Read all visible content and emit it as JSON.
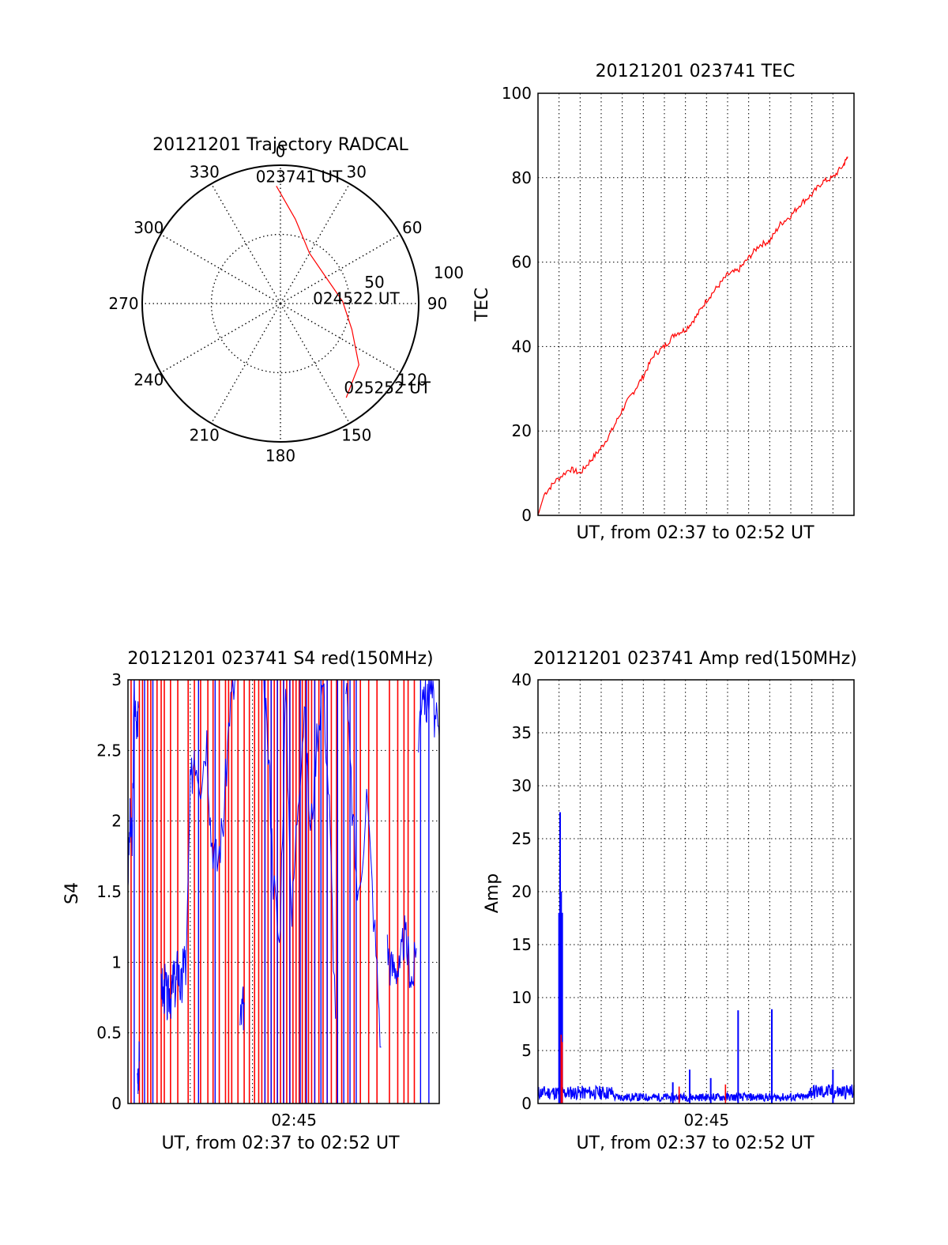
{
  "colors": {
    "red": "#ff0000",
    "blue": "#0000ff",
    "grid": "#000000"
  },
  "chart_data": [
    {
      "id": "trajectory",
      "type": "polar",
      "title": "20121201 Trajectory RADCAL",
      "angle_labels": [
        "0",
        "30",
        "60",
        "90",
        "120",
        "150",
        "180",
        "210",
        "240",
        "270",
        "300",
        "330"
      ],
      "radial_labels": [
        "50",
        "100"
      ],
      "radial_range": [
        0,
        100
      ],
      "grid": true,
      "track": {
        "color": "red",
        "points": [
          {
            "az": -2,
            "r": 85
          },
          {
            "az": 10,
            "r": 62
          },
          {
            "az": 30,
            "r": 42
          },
          {
            "az": 60,
            "r": 38
          },
          {
            "az": 88,
            "r": 45
          },
          {
            "az": 110,
            "r": 55
          },
          {
            "az": 128,
            "r": 72
          },
          {
            "az": 145,
            "r": 83
          }
        ]
      },
      "annotations": [
        {
          "text": "023741 UT",
          "az": 12,
          "r": 92
        },
        {
          "text": "024522 UT",
          "az": 88,
          "r": 56
        },
        {
          "text": "025252 UT",
          "az": 128,
          "r": 98
        }
      ]
    },
    {
      "id": "tec",
      "type": "line",
      "title": "20121201 023741 TEC",
      "xlabel": "UT, from 02:37 to 02:52 UT",
      "ylabel": "TEC",
      "xlim": [
        0,
        15
      ],
      "ylim": [
        0,
        100
      ],
      "yticks": [
        0,
        20,
        40,
        60,
        80,
        100
      ],
      "grid": true,
      "series": [
        {
          "color": "red",
          "x": [
            0.0,
            0.3,
            0.8,
            1.5,
            2.0,
            2.5,
            3.0,
            3.5,
            4.0,
            4.5,
            5.0,
            5.5,
            6.0,
            6.5,
            7.0,
            7.5,
            8.0,
            8.5,
            9.0,
            9.5,
            10.0,
            10.5,
            11.0,
            11.5,
            12.0,
            12.5,
            13.0,
            13.5,
            14.0,
            14.5,
            14.7
          ],
          "y": [
            0,
            5,
            8,
            11,
            10,
            13,
            16,
            20,
            25,
            29,
            33,
            38,
            40,
            43,
            44,
            47,
            51,
            54,
            57,
            58,
            61,
            64,
            65,
            69,
            71,
            74,
            76,
            79,
            80,
            83,
            85
          ]
        }
      ]
    },
    {
      "id": "s4",
      "type": "line",
      "title": "20121201 023741 S4 red(150MHz)",
      "xlabel": "UT, from 02:37 to 02:52 UT",
      "ylabel": "S4",
      "xlim": [
        0,
        15
      ],
      "ylim": [
        0,
        3
      ],
      "yticks": [
        0,
        0.5,
        1,
        1.5,
        2,
        2.5,
        3
      ],
      "ytick_labels": [
        "0",
        "0.5",
        "1",
        "1.5",
        "2",
        "2.5",
        "3"
      ],
      "xticks": [
        8
      ],
      "xtick_labels": [
        "02:45"
      ],
      "grid": true,
      "red_spikes_x": [
        0.15,
        0.55,
        0.7,
        0.95,
        1.1,
        1.4,
        1.6,
        1.75,
        2.05,
        2.4,
        2.9,
        3.2,
        3.5,
        3.85,
        4.1,
        4.4,
        4.7,
        4.85,
        5.0,
        5.3,
        5.6,
        5.85,
        6.1,
        6.3,
        6.45,
        6.6,
        6.75,
        6.9,
        7.05,
        7.2,
        7.35,
        7.5,
        7.65,
        7.8,
        7.95,
        8.1,
        8.25,
        8.4,
        8.55,
        8.7,
        8.85,
        9.0,
        9.2,
        9.4,
        9.6,
        9.8,
        10.05,
        10.3,
        10.6,
        10.9,
        11.2,
        11.6,
        12.0,
        12.6,
        13.0,
        13.3,
        13.5,
        13.8
      ],
      "blue_segments": [
        {
          "x": [
            0.0,
            0.1,
            0.2,
            0.3,
            0.4,
            0.5
          ],
          "y": [
            1.6,
            2.0,
            1.8,
            3.0,
            2.6,
            2.8
          ]
        },
        {
          "x": [
            0.45,
            0.5,
            0.55
          ],
          "y": [
            0.2,
            0.25,
            0.3
          ]
        },
        {
          "x": [
            1.6,
            1.7,
            1.8,
            1.9,
            2.0,
            2.1,
            2.2,
            2.3,
            2.4,
            2.5,
            2.6,
            2.7,
            2.8,
            3.0,
            3.2
          ],
          "y": [
            0.9,
            0.75,
            0.85,
            0.7,
            0.8,
            0.75,
            0.9,
            0.8,
            1.0,
            0.85,
            0.8,
            1.1,
            0.9,
            2.2,
            2.5
          ]
        },
        {
          "x": [
            3.2,
            3.5,
            3.8,
            4.0,
            4.3,
            4.6,
            4.9,
            5.2
          ],
          "y": [
            2.5,
            2.3,
            2.6,
            1.9,
            1.7,
            2.0,
            2.8,
            3.0
          ]
        },
        {
          "x": [
            5.4,
            5.5,
            5.6
          ],
          "y": [
            0.55,
            0.65,
            0.7
          ]
        },
        {
          "x": [
            6.5,
            6.8,
            7.0,
            7.3,
            7.6,
            7.9,
            8.2,
            8.5,
            8.8,
            9.1,
            9.4,
            9.7,
            10.0
          ],
          "y": [
            3.0,
            2.4,
            1.6,
            1.1,
            2.9,
            1.3,
            2.2,
            2.8,
            1.9,
            2.6,
            3.0,
            2.1,
            0.6
          ]
        },
        {
          "x": [
            10.5,
            10.8,
            11.1,
            11.5,
            11.9,
            12.2
          ],
          "y": [
            3.0,
            2.1,
            1.4,
            2.2,
            1.2,
            0.4
          ]
        },
        {
          "x": [
            12.5,
            12.7,
            12.9,
            13.1,
            13.3,
            13.5,
            13.7,
            13.9
          ],
          "y": [
            1.1,
            0.95,
            1.0,
            0.9,
            1.2,
            1.05,
            0.85,
            1.1
          ]
        },
        {
          "x": [
            14.0,
            14.2,
            14.4,
            14.6,
            14.8,
            15.0
          ],
          "y": [
            2.6,
            3.0,
            2.8,
            3.0,
            2.7,
            2.6
          ]
        }
      ],
      "blue_spikes_x": [
        0.3,
        0.8,
        1.2,
        3.4,
        4.2,
        6.6,
        6.9,
        7.2,
        7.5,
        7.8,
        8.3,
        8.6,
        9.0,
        9.3,
        9.6,
        10.1,
        10.4,
        10.7,
        11.0,
        14.1,
        14.5
      ]
    },
    {
      "id": "amp",
      "type": "line",
      "title": "20121201 023741 Amp red(150MHz)",
      "xlabel": "UT, from 02:37 to 02:52 UT",
      "ylabel": "Amp",
      "xlim": [
        0,
        15
      ],
      "ylim": [
        0,
        40
      ],
      "yticks": [
        0,
        5,
        10,
        15,
        20,
        25,
        30,
        35,
        40
      ],
      "xticks": [
        8
      ],
      "xtick_labels": [
        "02:45"
      ],
      "grid": true,
      "blue_spikes": [
        {
          "x": 1.0,
          "y": 18
        },
        {
          "x": 1.05,
          "y": 27.5
        },
        {
          "x": 1.1,
          "y": 20
        },
        {
          "x": 1.15,
          "y": 18
        },
        {
          "x": 6.4,
          "y": 2
        },
        {
          "x": 7.2,
          "y": 3.2
        },
        {
          "x": 8.2,
          "y": 2.4
        },
        {
          "x": 9.5,
          "y": 8.8
        },
        {
          "x": 11.1,
          "y": 8.9
        },
        {
          "x": 14.0,
          "y": 3.2
        }
      ],
      "red_spikes": [
        {
          "x": 1.1,
          "y": 6.5
        },
        {
          "x": 1.15,
          "y": 5.8
        },
        {
          "x": 6.7,
          "y": 1.6
        },
        {
          "x": 8.9,
          "y": 1.8
        }
      ],
      "baseline_blue": [
        {
          "x0": 0.0,
          "x1": 3.6,
          "y": 1.2
        },
        {
          "x0": 3.6,
          "x1": 12.8,
          "y": 0.7
        },
        {
          "x0": 12.8,
          "x1": 15.0,
          "y": 1.3
        }
      ]
    }
  ]
}
